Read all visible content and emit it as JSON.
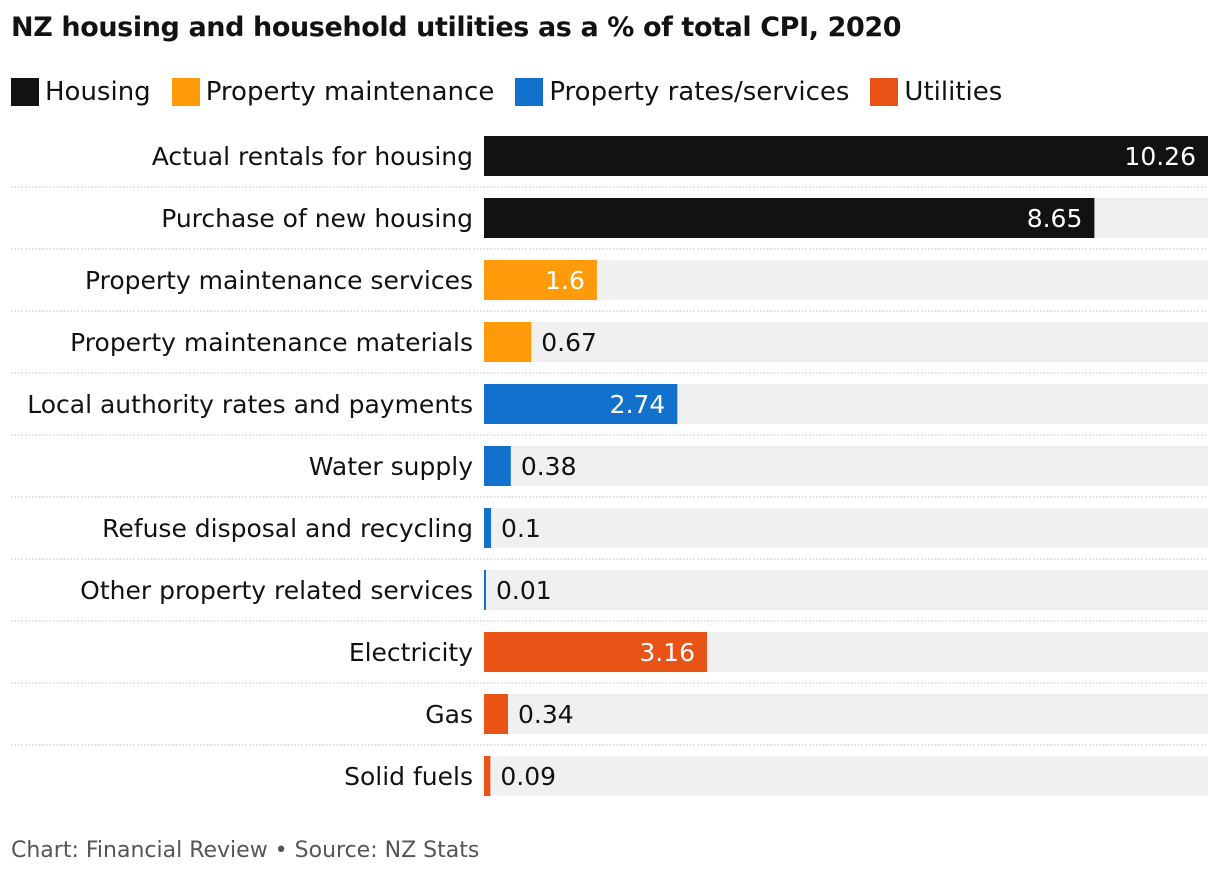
{
  "chart_data": {
    "type": "bar",
    "orientation": "horizontal",
    "title": "NZ housing and household utilities as a % of total CPI, 2020",
    "legend": [
      {
        "label": "Housing",
        "color": "#121212"
      },
      {
        "label": "Property maintenance",
        "color": "#ff9b0b"
      },
      {
        "label": "Property rates/services",
        "color": "#1271cc"
      },
      {
        "label": "Utilities",
        "color": "#e95316"
      }
    ],
    "categories": [
      "Actual rentals for housing",
      "Purchase of new housing",
      "Property maintenance services",
      "Property maintenance materials",
      "Local authority rates and payments",
      "Water supply",
      "Refuse disposal and recycling",
      "Other property related services",
      "Electricity",
      "Gas",
      "Solid fuels"
    ],
    "values": [
      10.26,
      8.65,
      1.6,
      0.67,
      2.74,
      0.38,
      0.1,
      0.01,
      3.16,
      0.34,
      0.09
    ],
    "value_labels": [
      "10.26",
      "8.65",
      "1.6",
      "0.67",
      "2.74",
      "0.38",
      "0.1",
      "0.01",
      "3.16",
      "0.34",
      "0.09"
    ],
    "groups": [
      "Housing",
      "Housing",
      "Property maintenance",
      "Property maintenance",
      "Property rates/services",
      "Property rates/services",
      "Property rates/services",
      "Property rates/services",
      "Utilities",
      "Utilities",
      "Utilities"
    ],
    "xlim": [
      0,
      10.26
    ],
    "grid": false,
    "legend_position": "top-left"
  },
  "footer": "Chart: Financial Review • Source: NZ Stats"
}
